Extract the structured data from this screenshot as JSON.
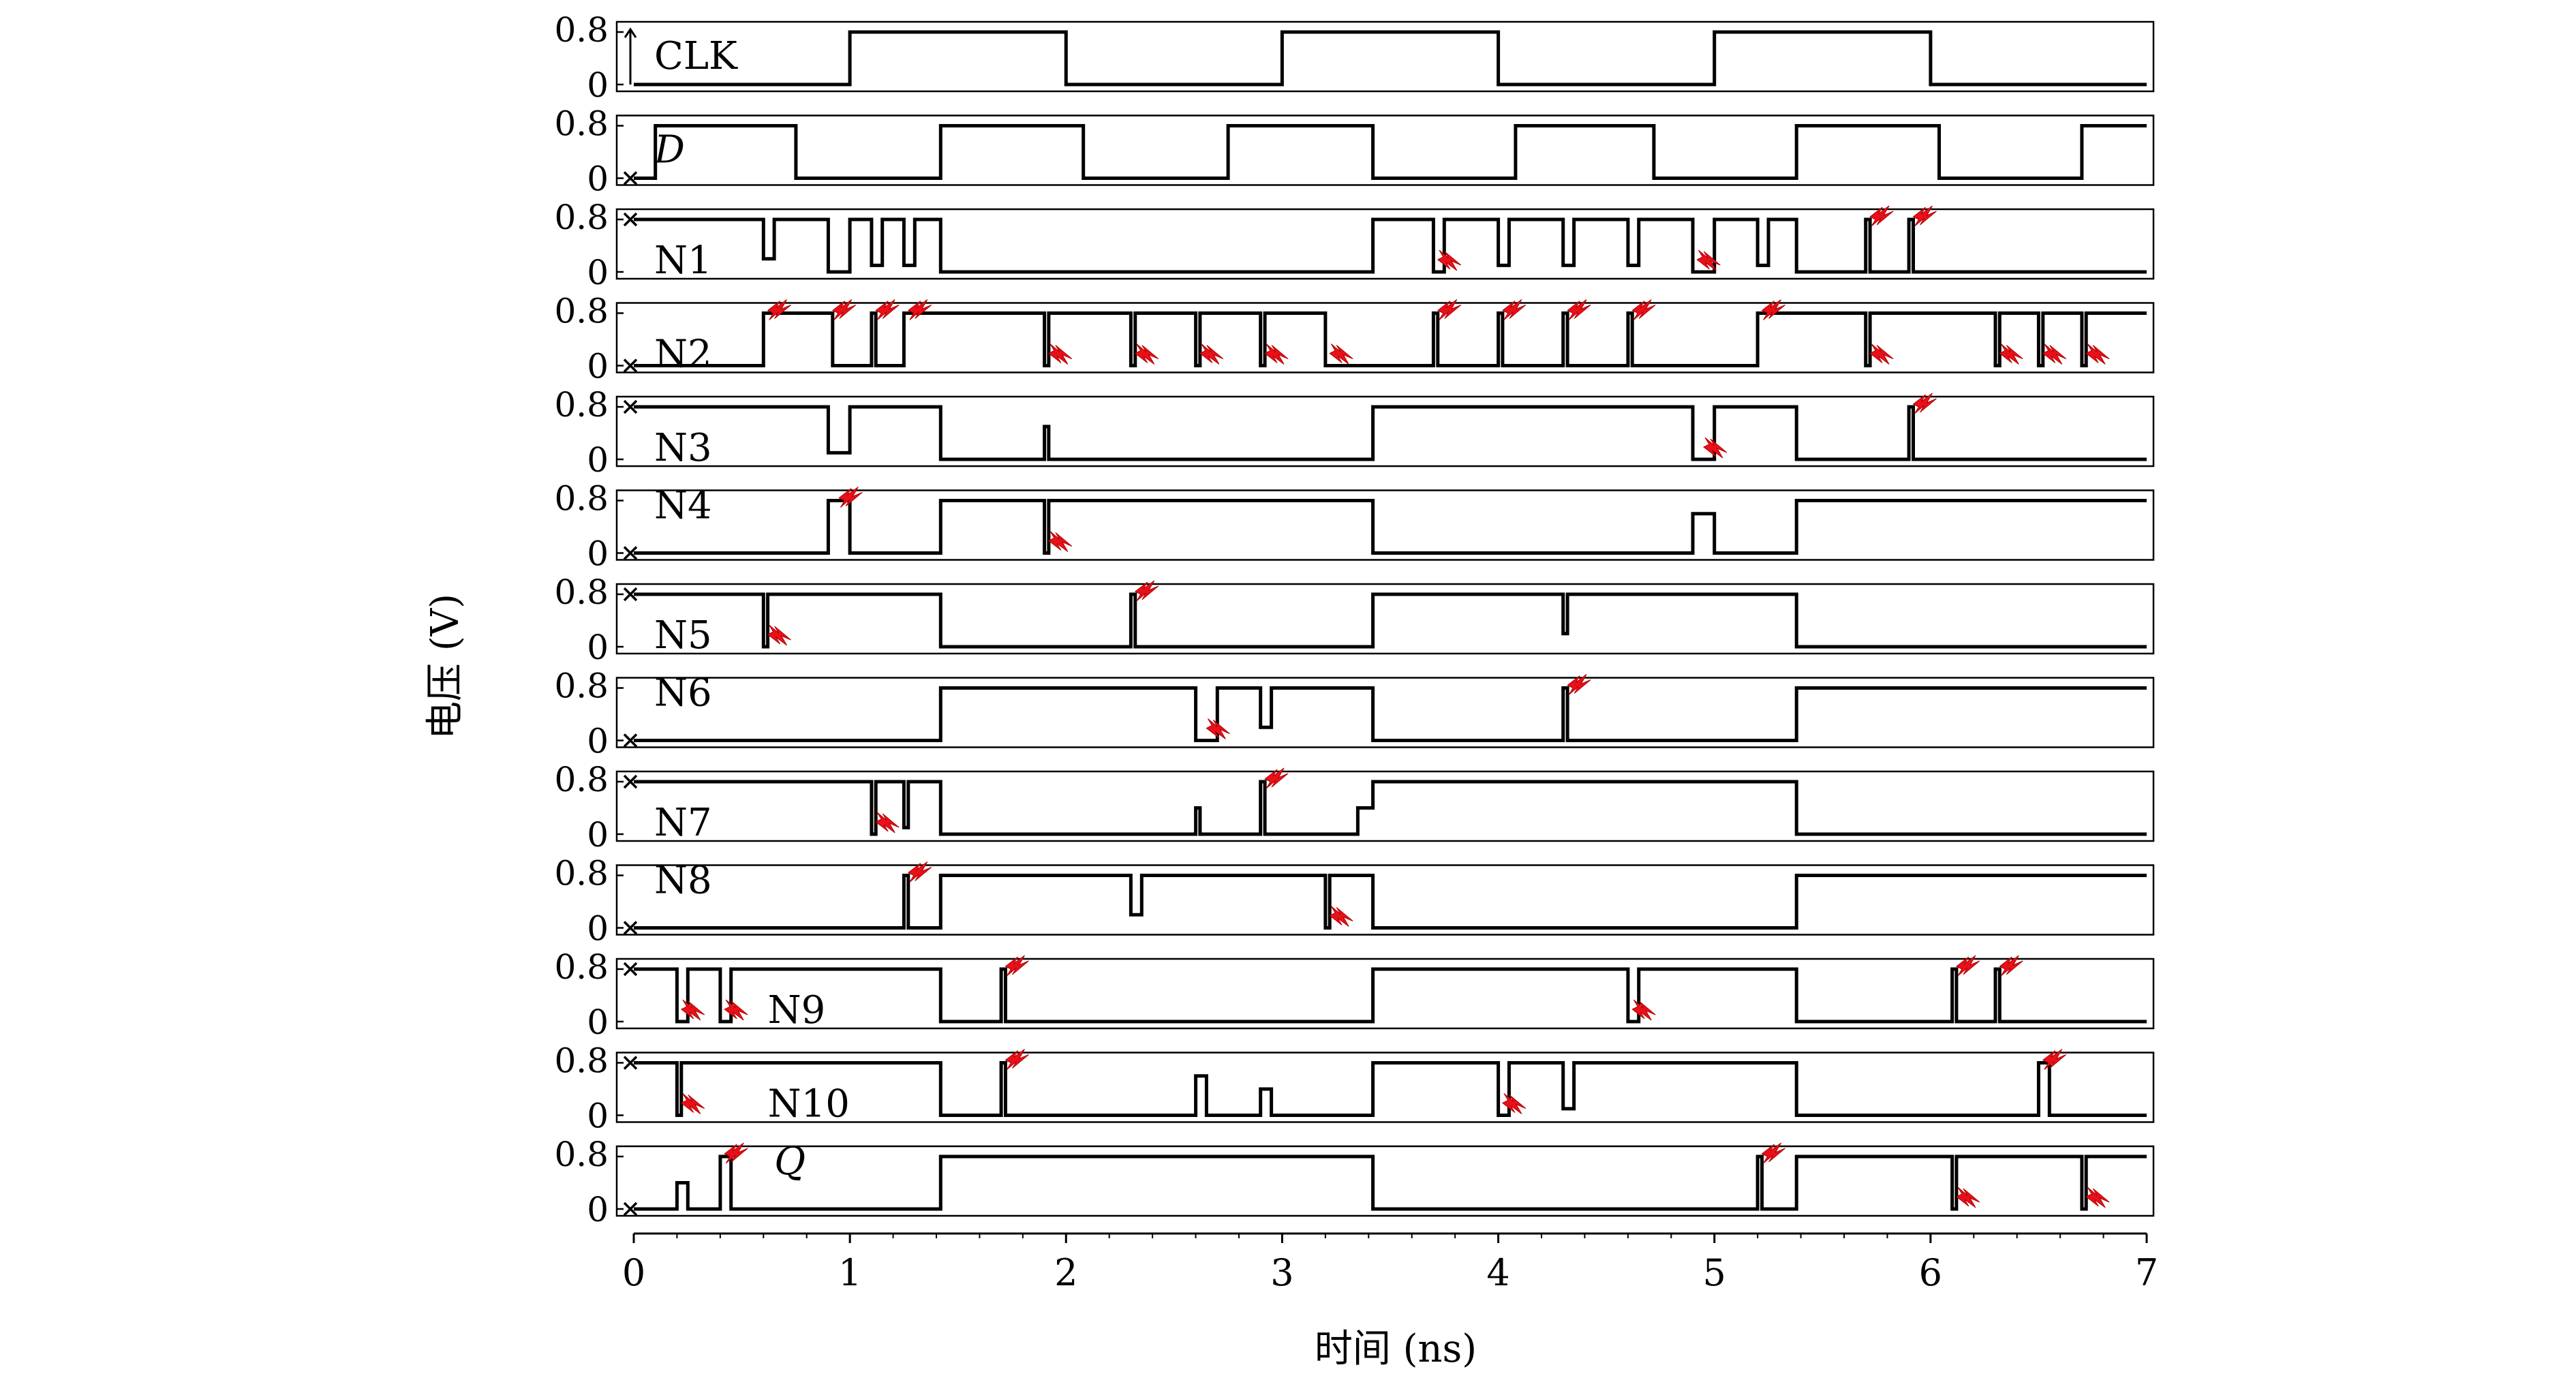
{
  "chart_data": {
    "type": "line",
    "xlabel": "时间 (ns)",
    "ylabel": "电压 (V)",
    "xlim": [
      0,
      7
    ],
    "x_ticks": [
      "0",
      "1",
      "2",
      "3",
      "4",
      "5",
      "6",
      "7"
    ],
    "y_tick_labels": [
      "0.8",
      "0"
    ],
    "ylim": [
      0,
      0.8
    ],
    "grid": false,
    "colors": {
      "trace": "#000000",
      "strike_marker": "#e8101a"
    },
    "series": [
      {
        "name": "CLK",
        "italic": false,
        "x": [
          0,
          1,
          1,
          2,
          2,
          3,
          3,
          4,
          4,
          5,
          5,
          6,
          6,
          7
        ],
        "y": [
          0,
          0,
          0.8,
          0.8,
          0,
          0,
          0.8,
          0.8,
          0,
          0,
          0.8,
          0.8,
          0,
          0
        ],
        "strikes": []
      },
      {
        "name": "D",
        "italic": true,
        "x": [
          0,
          0.1,
          0.1,
          0.75,
          0.75,
          1.42,
          1.42,
          2.08,
          2.08,
          2.75,
          2.75,
          3.42,
          3.42,
          4.08,
          4.08,
          4.72,
          4.72,
          5.38,
          5.38,
          6.04,
          6.04,
          6.7,
          6.7,
          7
        ],
        "y": [
          0,
          0,
          0.8,
          0.8,
          0,
          0,
          0.8,
          0.8,
          0,
          0,
          0.8,
          0.8,
          0,
          0,
          0.8,
          0.8,
          0,
          0,
          0.8,
          0.8,
          0,
          0,
          0.8,
          0.8
        ],
        "strikes": []
      },
      {
        "name": "N1",
        "italic": false,
        "x": [
          0,
          0.6,
          0.6,
          0.65,
          0.65,
          0.9,
          0.9,
          1.0,
          1.0,
          1.1,
          1.1,
          1.15,
          1.15,
          1.25,
          1.25,
          1.3,
          1.3,
          1.42,
          1.42,
          3.42,
          3.42,
          3.7,
          3.7,
          3.75,
          3.75,
          4.0,
          4.0,
          4.05,
          4.05,
          4.3,
          4.3,
          4.35,
          4.35,
          4.6,
          4.6,
          4.65,
          4.65,
          4.9,
          4.9,
          5.0,
          5.0,
          5.2,
          5.2,
          5.25,
          5.25,
          5.38,
          5.38,
          5.7,
          5.7,
          5.72,
          5.72,
          5.9,
          5.9,
          5.92,
          5.92,
          7
        ],
        "y": [
          0.8,
          0.8,
          0.2,
          0.2,
          0.8,
          0.8,
          0,
          0,
          0.8,
          0.8,
          0.1,
          0.1,
          0.8,
          0.8,
          0.1,
          0.1,
          0.8,
          0.8,
          0,
          0,
          0.8,
          0.8,
          0,
          0,
          0.8,
          0.8,
          0.1,
          0.1,
          0.8,
          0.8,
          0.1,
          0.1,
          0.8,
          0.8,
          0.1,
          0.1,
          0.8,
          0.8,
          0,
          0,
          0.8,
          0.8,
          0.1,
          0.1,
          0.8,
          0.8,
          0,
          0,
          0.8,
          0.8,
          0,
          0,
          0.8,
          0.8,
          0,
          0
        ],
        "strikes": [
          [
            3.72,
            "down"
          ],
          [
            4.92,
            "down"
          ],
          [
            5.72,
            "up"
          ],
          [
            5.92,
            "up"
          ]
        ]
      },
      {
        "name": "N2",
        "italic": false,
        "x": [
          0,
          0.6,
          0.6,
          0.62,
          0.62,
          0.9,
          0.9,
          0.92,
          0.92,
          1.1,
          1.1,
          1.12,
          1.12,
          1.25,
          1.25,
          1.27,
          1.27,
          1.42,
          1.42,
          1.9,
          1.9,
          1.92,
          1.92,
          2.3,
          2.3,
          2.32,
          2.32,
          2.6,
          2.6,
          2.62,
          2.62,
          2.9,
          2.9,
          2.92,
          2.92,
          3.2,
          3.2,
          3.22,
          3.22,
          3.42,
          3.42,
          3.7,
          3.7,
          3.72,
          3.72,
          4.0,
          4.0,
          4.02,
          4.02,
          4.3,
          4.3,
          4.32,
          4.32,
          4.6,
          4.6,
          4.62,
          4.62,
          5.2,
          5.2,
          5.22,
          5.22,
          5.38,
          5.38,
          5.7,
          5.7,
          5.72,
          5.72,
          6.3,
          6.3,
          6.32,
          6.32,
          6.5,
          6.5,
          6.52,
          6.52,
          6.7,
          6.7,
          6.72,
          6.72,
          7
        ],
        "y": [
          0,
          0,
          0.8,
          0.8,
          0.8,
          0.8,
          0.8,
          0.8,
          0,
          0,
          0.8,
          0.8,
          0,
          0,
          0.8,
          0.8,
          0.8,
          0.8,
          0.8,
          0.8,
          0,
          0,
          0.8,
          0.8,
          0,
          0,
          0.8,
          0.8,
          0,
          0,
          0.8,
          0.8,
          0,
          0,
          0.8,
          0.8,
          0,
          0,
          0,
          0,
          0,
          0,
          0.8,
          0.8,
          0,
          0,
          0.8,
          0.8,
          0,
          0,
          0.8,
          0.8,
          0,
          0,
          0.8,
          0.8,
          0,
          0,
          0.8,
          0.8,
          0.8,
          0.8,
          0.8,
          0.8,
          0,
          0,
          0.8,
          0.8,
          0,
          0,
          0.8,
          0.8,
          0,
          0,
          0.8,
          0.8,
          0,
          0,
          0.8,
          0.8
        ],
        "strikes": [
          [
            0.62,
            "up"
          ],
          [
            0.92,
            "up"
          ],
          [
            1.12,
            "up"
          ],
          [
            1.27,
            "up"
          ],
          [
            1.92,
            "down"
          ],
          [
            2.32,
            "down"
          ],
          [
            2.62,
            "down"
          ],
          [
            2.92,
            "down"
          ],
          [
            3.22,
            "down"
          ],
          [
            3.72,
            "up"
          ],
          [
            4.02,
            "up"
          ],
          [
            4.32,
            "up"
          ],
          [
            4.62,
            "up"
          ],
          [
            5.22,
            "up"
          ],
          [
            5.72,
            "down"
          ],
          [
            6.32,
            "down"
          ],
          [
            6.52,
            "down"
          ],
          [
            6.72,
            "down"
          ]
        ]
      },
      {
        "name": "N3",
        "italic": false,
        "x": [
          0,
          0.9,
          0.9,
          1.0,
          1.0,
          1.42,
          1.42,
          1.9,
          1.9,
          1.92,
          1.92,
          3.42,
          3.42,
          4.9,
          4.9,
          5.0,
          5.0,
          5.38,
          5.38,
          5.9,
          5.9,
          5.92,
          5.92,
          7
        ],
        "y": [
          0.8,
          0.8,
          0.1,
          0.1,
          0.8,
          0.8,
          0,
          0,
          0.5,
          0.5,
          0,
          0,
          0.8,
          0.8,
          0,
          0,
          0.8,
          0.8,
          0,
          0,
          0.8,
          0.8,
          0,
          0
        ],
        "strikes": [
          [
            4.95,
            "down"
          ],
          [
            5.92,
            "up"
          ]
        ]
      },
      {
        "name": "N4",
        "italic": false,
        "x": [
          0,
          0.9,
          0.9,
          1.0,
          1.0,
          1.42,
          1.42,
          1.9,
          1.9,
          1.92,
          1.92,
          3.42,
          3.42,
          4.9,
          4.9,
          5.0,
          5.0,
          5.38,
          5.38,
          7
        ],
        "y": [
          0,
          0,
          0.8,
          0.8,
          0,
          0,
          0.8,
          0.8,
          0,
          0,
          0.8,
          0.8,
          0,
          0,
          0.6,
          0.6,
          0,
          0,
          0.8,
          0.8
        ],
        "strikes": [
          [
            0.95,
            "up"
          ],
          [
            1.92,
            "down"
          ]
        ]
      },
      {
        "name": "N5",
        "italic": false,
        "x": [
          0,
          0.6,
          0.6,
          0.62,
          0.62,
          1.42,
          1.42,
          2.3,
          2.3,
          2.32,
          2.32,
          3.42,
          3.42,
          4.3,
          4.3,
          4.32,
          4.32,
          5.38,
          5.38,
          7
        ],
        "y": [
          0.8,
          0.8,
          0,
          0,
          0.8,
          0.8,
          0,
          0,
          0.8,
          0.8,
          0,
          0,
          0.8,
          0.8,
          0.2,
          0.2,
          0.8,
          0.8,
          0,
          0
        ],
        "strikes": [
          [
            0.62,
            "down"
          ],
          [
            2.32,
            "up"
          ]
        ]
      },
      {
        "name": "N6",
        "italic": false,
        "x": [
          0,
          1.42,
          1.42,
          2.6,
          2.6,
          2.7,
          2.7,
          2.9,
          2.9,
          2.95,
          2.95,
          3.42,
          3.42,
          4.3,
          4.3,
          4.32,
          4.32,
          5.38,
          5.38,
          7
        ],
        "y": [
          0,
          0,
          0.8,
          0.8,
          0,
          0,
          0.8,
          0.8,
          0.2,
          0.2,
          0.8,
          0.8,
          0,
          0,
          0.8,
          0.8,
          0,
          0,
          0.8,
          0.8
        ],
        "strikes": [
          [
            2.65,
            "down"
          ],
          [
            4.32,
            "up"
          ]
        ]
      },
      {
        "name": "N7",
        "italic": false,
        "x": [
          0,
          1.1,
          1.1,
          1.12,
          1.12,
          1.25,
          1.25,
          1.27,
          1.27,
          1.42,
          1.42,
          2.6,
          2.6,
          2.62,
          2.62,
          2.9,
          2.9,
          2.92,
          2.92,
          3.35,
          3.35,
          3.42,
          3.42,
          5.38,
          5.38,
          7
        ],
        "y": [
          0.8,
          0.8,
          0,
          0,
          0.8,
          0.8,
          0.1,
          0.1,
          0.8,
          0.8,
          0,
          0,
          0.4,
          0.4,
          0,
          0,
          0.8,
          0.8,
          0,
          0,
          0.4,
          0.4,
          0.8,
          0.8,
          0,
          0
        ],
        "strikes": [
          [
            1.12,
            "down"
          ],
          [
            2.92,
            "up"
          ]
        ]
      },
      {
        "name": "N8",
        "italic": false,
        "x": [
          0,
          1.25,
          1.25,
          1.27,
          1.27,
          1.42,
          1.42,
          2.3,
          2.3,
          2.35,
          2.35,
          3.2,
          3.2,
          3.22,
          3.22,
          3.42,
          3.42,
          5.38,
          5.38,
          7
        ],
        "y": [
          0,
          0,
          0.8,
          0.8,
          0,
          0,
          0.8,
          0.8,
          0.2,
          0.2,
          0.8,
          0.8,
          0,
          0,
          0.8,
          0.8,
          0,
          0,
          0.8,
          0.8
        ],
        "strikes": [
          [
            1.27,
            "up"
          ],
          [
            3.22,
            "down"
          ]
        ]
      },
      {
        "name": "N9",
        "italic": false,
        "x": [
          0,
          0.2,
          0.2,
          0.25,
          0.25,
          0.4,
          0.4,
          0.45,
          0.45,
          1.42,
          1.42,
          1.7,
          1.7,
          1.72,
          1.72,
          3.42,
          3.42,
          4.6,
          4.6,
          4.65,
          4.65,
          5.0,
          5.0,
          5.38,
          5.38,
          6.1,
          6.1,
          6.12,
          6.12,
          6.3,
          6.3,
          6.32,
          6.32,
          7
        ],
        "y": [
          0.8,
          0.8,
          0,
          0,
          0.8,
          0.8,
          0,
          0,
          0.8,
          0.8,
          0,
          0,
          0.8,
          0.8,
          0,
          0,
          0.8,
          0.8,
          0,
          0,
          0.8,
          0.8,
          0.8,
          0.8,
          0,
          0,
          0.8,
          0.8,
          0,
          0,
          0.8,
          0.8,
          0,
          0
        ],
        "strikes": [
          [
            0.22,
            "down"
          ],
          [
            0.42,
            "down"
          ],
          [
            1.72,
            "up"
          ],
          [
            4.62,
            "down"
          ],
          [
            6.12,
            "up"
          ],
          [
            6.32,
            "up"
          ]
        ]
      },
      {
        "name": "N10",
        "italic": false,
        "x": [
          0,
          0.2,
          0.2,
          0.22,
          0.22,
          1.42,
          1.42,
          1.7,
          1.7,
          1.72,
          1.72,
          2.6,
          2.6,
          2.65,
          2.65,
          2.9,
          2.9,
          2.95,
          2.95,
          3.42,
          3.42,
          4.0,
          4.0,
          4.05,
          4.05,
          4.3,
          4.3,
          4.35,
          4.35,
          5.38,
          5.38,
          6.5,
          6.5,
          6.55,
          6.55,
          7
        ],
        "y": [
          0.8,
          0.8,
          0,
          0,
          0.8,
          0.8,
          0,
          0,
          0.8,
          0.8,
          0,
          0,
          0.6,
          0.6,
          0,
          0,
          0.4,
          0.4,
          0,
          0,
          0.8,
          0.8,
          0,
          0,
          0.8,
          0.8,
          0.1,
          0.1,
          0.8,
          0.8,
          0,
          0,
          0.8,
          0.8,
          0,
          0
        ],
        "strikes": [
          [
            0.22,
            "down"
          ],
          [
            1.72,
            "up"
          ],
          [
            4.02,
            "down"
          ],
          [
            6.52,
            "up"
          ]
        ]
      },
      {
        "name": "Q",
        "italic": true,
        "x": [
          0,
          0.2,
          0.2,
          0.25,
          0.25,
          0.4,
          0.4,
          0.45,
          0.45,
          1.42,
          1.42,
          3.42,
          3.42,
          5.2,
          5.2,
          5.22,
          5.22,
          5.38,
          5.38,
          6.1,
          6.1,
          6.12,
          6.12,
          6.7,
          6.7,
          6.72,
          6.72,
          7
        ],
        "y": [
          0,
          0,
          0.4,
          0.4,
          0,
          0,
          0.8,
          0.8,
          0,
          0,
          0.8,
          0.8,
          0,
          0,
          0.8,
          0.8,
          0,
          0,
          0.8,
          0.8,
          0,
          0,
          0.8,
          0.8,
          0,
          0,
          0.8,
          0.8
        ],
        "strikes": [
          [
            0.42,
            "up"
          ],
          [
            5.22,
            "up"
          ],
          [
            6.12,
            "down"
          ],
          [
            6.72,
            "down"
          ]
        ]
      }
    ]
  }
}
